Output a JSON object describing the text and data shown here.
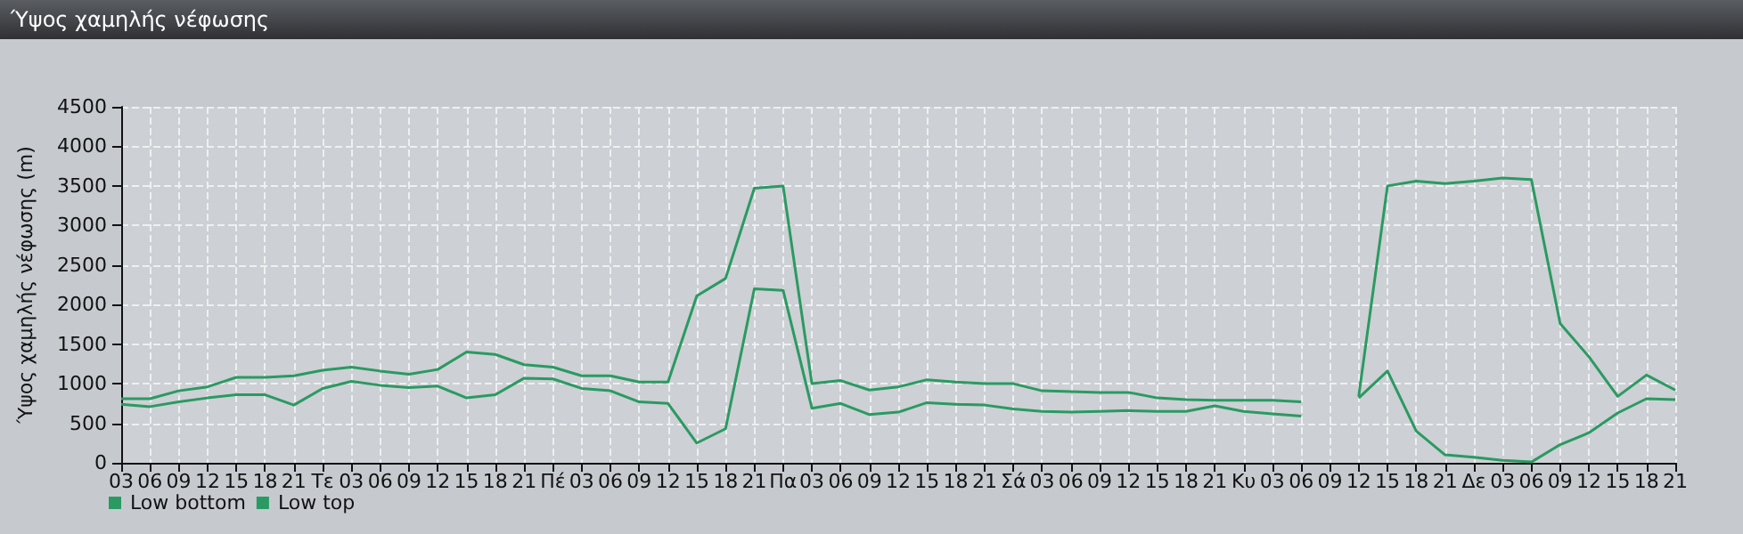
{
  "chart_data": {
    "type": "line",
    "title": "Ύψος χαμηλής νέφωσης",
    "ylabel": "Ύψος χαμηλής νέφωσης (m)",
    "categories": [
      "03",
      "06",
      "09",
      "12",
      "15",
      "18",
      "21",
      "Τε",
      "03",
      "06",
      "09",
      "12",
      "15",
      "18",
      "21",
      "Πέ",
      "03",
      "06",
      "09",
      "12",
      "15",
      "18",
      "21",
      "Πα",
      "03",
      "06",
      "09",
      "12",
      "15",
      "18",
      "21",
      "Σά",
      "03",
      "06",
      "09",
      "12",
      "15",
      "18",
      "21",
      "Κυ",
      "03",
      "06",
      "09",
      "12",
      "15",
      "18",
      "21",
      "Δε",
      "03",
      "06",
      "09",
      "12",
      "15",
      "18",
      "21"
    ],
    "series": [
      {
        "name": "Low bottom",
        "color": "#2a9a62",
        "values": [
          740,
          710,
          770,
          820,
          860,
          860,
          730,
          940,
          1030,
          980,
          950,
          970,
          820,
          860,
          1070,
          1060,
          940,
          910,
          770,
          750,
          250,
          430,
          2200,
          2180,
          690,
          750,
          610,
          640,
          760,
          740,
          730,
          680,
          650,
          640,
          650,
          660,
          650,
          650,
          720,
          650,
          620,
          590,
          null,
          820,
          1160,
          400,
          100,
          70,
          30,
          10,
          230,
          380,
          630,
          810,
          800
        ]
      },
      {
        "name": "Low top",
        "color": "#2a9a62",
        "values": [
          810,
          810,
          910,
          960,
          1080,
          1080,
          1100,
          1170,
          1210,
          1160,
          1120,
          1180,
          1400,
          1370,
          1240,
          1210,
          1100,
          1100,
          1020,
          1020,
          2110,
          2330,
          3470,
          3500,
          1000,
          1040,
          920,
          960,
          1050,
          1020,
          1000,
          1000,
          910,
          900,
          890,
          890,
          820,
          800,
          790,
          790,
          790,
          770,
          null,
          840,
          3500,
          3560,
          3530,
          3560,
          3600,
          3580,
          1760,
          1340,
          840,
          1110,
          920
        ]
      }
    ],
    "ylim": [
      0,
      4500
    ],
    "yticks": [
      0,
      500,
      1000,
      1500,
      2000,
      2500,
      3000,
      3500,
      4000,
      4500
    ],
    "grid": true,
    "legend": "bottom left",
    "marker": "none",
    "line_style": "solid"
  }
}
